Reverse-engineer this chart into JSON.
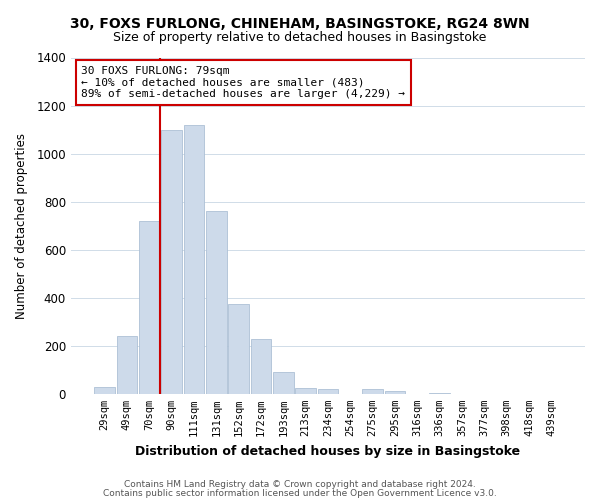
{
  "title": "30, FOXS FURLONG, CHINEHAM, BASINGSTOKE, RG24 8WN",
  "subtitle": "Size of property relative to detached houses in Basingstoke",
  "xlabel": "Distribution of detached houses by size in Basingstoke",
  "ylabel": "Number of detached properties",
  "bar_labels": [
    "29sqm",
    "49sqm",
    "70sqm",
    "90sqm",
    "111sqm",
    "131sqm",
    "152sqm",
    "172sqm",
    "193sqm",
    "213sqm",
    "234sqm",
    "254sqm",
    "275sqm",
    "295sqm",
    "316sqm",
    "336sqm",
    "357sqm",
    "377sqm",
    "398sqm",
    "418sqm",
    "439sqm"
  ],
  "bar_values": [
    30,
    240,
    720,
    1100,
    1120,
    760,
    375,
    230,
    90,
    25,
    20,
    0,
    20,
    10,
    0,
    5,
    0,
    0,
    0,
    0,
    0
  ],
  "bar_color": "#cddaea",
  "bar_edge_color": "#adc0d5",
  "vline_color": "#cc0000",
  "ylim": [
    0,
    1400
  ],
  "yticks": [
    0,
    200,
    400,
    600,
    800,
    1000,
    1200,
    1400
  ],
  "annotation_title": "30 FOXS FURLONG: 79sqm",
  "annotation_line1": "← 10% of detached houses are smaller (483)",
  "annotation_line2": "89% of semi-detached houses are larger (4,229) →",
  "annotation_box_color": "#ffffff",
  "annotation_box_edge": "#cc0000",
  "footer1": "Contains HM Land Registry data © Crown copyright and database right 2024.",
  "footer2": "Contains public sector information licensed under the Open Government Licence v3.0.",
  "bg_color": "#ffffff",
  "plot_bg_color": "#ffffff",
  "grid_color": "#d0dce8"
}
